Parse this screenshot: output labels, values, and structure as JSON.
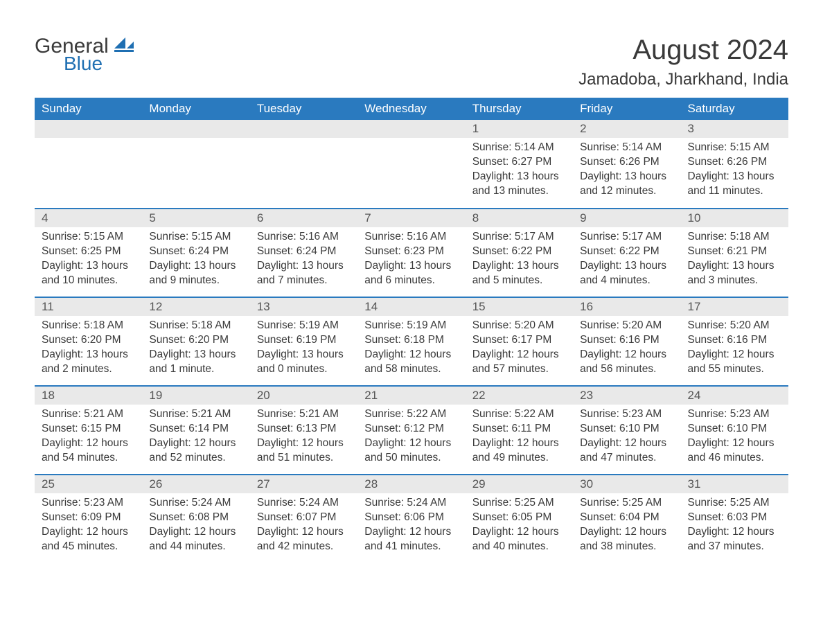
{
  "brand": {
    "word1": "General",
    "word2": "Blue",
    "logo_text_color": "#3a3a3a",
    "logo_accent_color": "#1f6fb2"
  },
  "header": {
    "title": "August 2024",
    "location": "Jamadoba, Jharkhand, India"
  },
  "colors": {
    "header_bg": "#2a7abf",
    "header_text": "#ffffff",
    "row_divider": "#2a7abf",
    "daynum_bg": "#e9e9e9",
    "body_text": "#3a3a3a",
    "page_bg": "#ffffff"
  },
  "typography": {
    "title_fontsize": 40,
    "location_fontsize": 24,
    "dayheader_fontsize": 17,
    "cell_fontsize": 15.5
  },
  "calendar": {
    "day_headers": [
      "Sunday",
      "Monday",
      "Tuesday",
      "Wednesday",
      "Thursday",
      "Friday",
      "Saturday"
    ],
    "weeks": [
      [
        {
          "empty": true
        },
        {
          "empty": true
        },
        {
          "empty": true
        },
        {
          "empty": true
        },
        {
          "day": "1",
          "sunrise": "Sunrise: 5:14 AM",
          "sunset": "Sunset: 6:27 PM",
          "daylight": "Daylight: 13 hours and 13 minutes."
        },
        {
          "day": "2",
          "sunrise": "Sunrise: 5:14 AM",
          "sunset": "Sunset: 6:26 PM",
          "daylight": "Daylight: 13 hours and 12 minutes."
        },
        {
          "day": "3",
          "sunrise": "Sunrise: 5:15 AM",
          "sunset": "Sunset: 6:26 PM",
          "daylight": "Daylight: 13 hours and 11 minutes."
        }
      ],
      [
        {
          "day": "4",
          "sunrise": "Sunrise: 5:15 AM",
          "sunset": "Sunset: 6:25 PM",
          "daylight": "Daylight: 13 hours and 10 minutes."
        },
        {
          "day": "5",
          "sunrise": "Sunrise: 5:15 AM",
          "sunset": "Sunset: 6:24 PM",
          "daylight": "Daylight: 13 hours and 9 minutes."
        },
        {
          "day": "6",
          "sunrise": "Sunrise: 5:16 AM",
          "sunset": "Sunset: 6:24 PM",
          "daylight": "Daylight: 13 hours and 7 minutes."
        },
        {
          "day": "7",
          "sunrise": "Sunrise: 5:16 AM",
          "sunset": "Sunset: 6:23 PM",
          "daylight": "Daylight: 13 hours and 6 minutes."
        },
        {
          "day": "8",
          "sunrise": "Sunrise: 5:17 AM",
          "sunset": "Sunset: 6:22 PM",
          "daylight": "Daylight: 13 hours and 5 minutes."
        },
        {
          "day": "9",
          "sunrise": "Sunrise: 5:17 AM",
          "sunset": "Sunset: 6:22 PM",
          "daylight": "Daylight: 13 hours and 4 minutes."
        },
        {
          "day": "10",
          "sunrise": "Sunrise: 5:18 AM",
          "sunset": "Sunset: 6:21 PM",
          "daylight": "Daylight: 13 hours and 3 minutes."
        }
      ],
      [
        {
          "day": "11",
          "sunrise": "Sunrise: 5:18 AM",
          "sunset": "Sunset: 6:20 PM",
          "daylight": "Daylight: 13 hours and 2 minutes."
        },
        {
          "day": "12",
          "sunrise": "Sunrise: 5:18 AM",
          "sunset": "Sunset: 6:20 PM",
          "daylight": "Daylight: 13 hours and 1 minute."
        },
        {
          "day": "13",
          "sunrise": "Sunrise: 5:19 AM",
          "sunset": "Sunset: 6:19 PM",
          "daylight": "Daylight: 13 hours and 0 minutes."
        },
        {
          "day": "14",
          "sunrise": "Sunrise: 5:19 AM",
          "sunset": "Sunset: 6:18 PM",
          "daylight": "Daylight: 12 hours and 58 minutes."
        },
        {
          "day": "15",
          "sunrise": "Sunrise: 5:20 AM",
          "sunset": "Sunset: 6:17 PM",
          "daylight": "Daylight: 12 hours and 57 minutes."
        },
        {
          "day": "16",
          "sunrise": "Sunrise: 5:20 AM",
          "sunset": "Sunset: 6:16 PM",
          "daylight": "Daylight: 12 hours and 56 minutes."
        },
        {
          "day": "17",
          "sunrise": "Sunrise: 5:20 AM",
          "sunset": "Sunset: 6:16 PM",
          "daylight": "Daylight: 12 hours and 55 minutes."
        }
      ],
      [
        {
          "day": "18",
          "sunrise": "Sunrise: 5:21 AM",
          "sunset": "Sunset: 6:15 PM",
          "daylight": "Daylight: 12 hours and 54 minutes."
        },
        {
          "day": "19",
          "sunrise": "Sunrise: 5:21 AM",
          "sunset": "Sunset: 6:14 PM",
          "daylight": "Daylight: 12 hours and 52 minutes."
        },
        {
          "day": "20",
          "sunrise": "Sunrise: 5:21 AM",
          "sunset": "Sunset: 6:13 PM",
          "daylight": "Daylight: 12 hours and 51 minutes."
        },
        {
          "day": "21",
          "sunrise": "Sunrise: 5:22 AM",
          "sunset": "Sunset: 6:12 PM",
          "daylight": "Daylight: 12 hours and 50 minutes."
        },
        {
          "day": "22",
          "sunrise": "Sunrise: 5:22 AM",
          "sunset": "Sunset: 6:11 PM",
          "daylight": "Daylight: 12 hours and 49 minutes."
        },
        {
          "day": "23",
          "sunrise": "Sunrise: 5:23 AM",
          "sunset": "Sunset: 6:10 PM",
          "daylight": "Daylight: 12 hours and 47 minutes."
        },
        {
          "day": "24",
          "sunrise": "Sunrise: 5:23 AM",
          "sunset": "Sunset: 6:10 PM",
          "daylight": "Daylight: 12 hours and 46 minutes."
        }
      ],
      [
        {
          "day": "25",
          "sunrise": "Sunrise: 5:23 AM",
          "sunset": "Sunset: 6:09 PM",
          "daylight": "Daylight: 12 hours and 45 minutes."
        },
        {
          "day": "26",
          "sunrise": "Sunrise: 5:24 AM",
          "sunset": "Sunset: 6:08 PM",
          "daylight": "Daylight: 12 hours and 44 minutes."
        },
        {
          "day": "27",
          "sunrise": "Sunrise: 5:24 AM",
          "sunset": "Sunset: 6:07 PM",
          "daylight": "Daylight: 12 hours and 42 minutes."
        },
        {
          "day": "28",
          "sunrise": "Sunrise: 5:24 AM",
          "sunset": "Sunset: 6:06 PM",
          "daylight": "Daylight: 12 hours and 41 minutes."
        },
        {
          "day": "29",
          "sunrise": "Sunrise: 5:25 AM",
          "sunset": "Sunset: 6:05 PM",
          "daylight": "Daylight: 12 hours and 40 minutes."
        },
        {
          "day": "30",
          "sunrise": "Sunrise: 5:25 AM",
          "sunset": "Sunset: 6:04 PM",
          "daylight": "Daylight: 12 hours and 38 minutes."
        },
        {
          "day": "31",
          "sunrise": "Sunrise: 5:25 AM",
          "sunset": "Sunset: 6:03 PM",
          "daylight": "Daylight: 12 hours and 37 minutes."
        }
      ]
    ]
  }
}
